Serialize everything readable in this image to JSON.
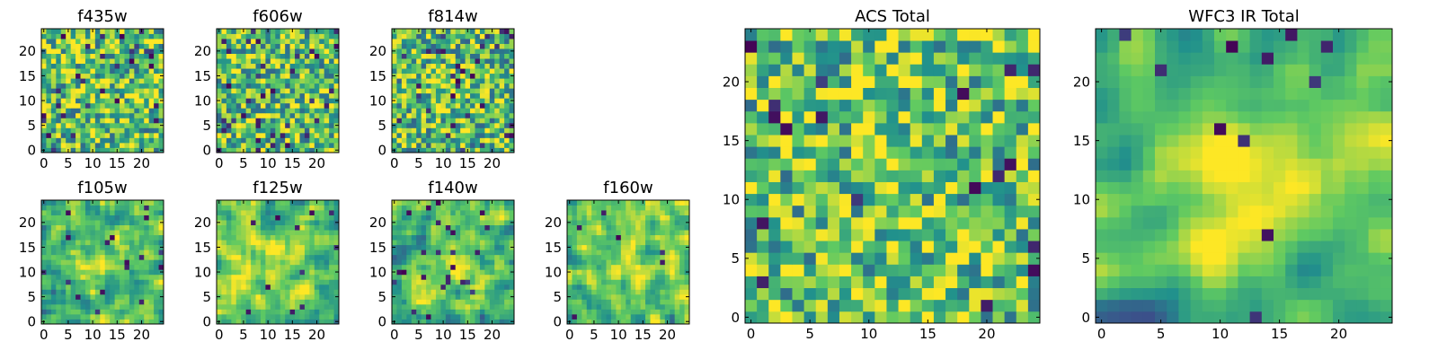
{
  "figure": {
    "colormap": "viridis",
    "colormap_stops": [
      "#440154",
      "#3b528b",
      "#21918c",
      "#5ec962",
      "#fde725"
    ],
    "axis_color": "#000000"
  },
  "chart_data": [
    {
      "type": "heatmap",
      "title": "f435w",
      "grid_size": 25,
      "xlim": [
        0,
        24
      ],
      "ylim": [
        0,
        24
      ],
      "xticks": [
        "0",
        "5",
        "10",
        "15",
        "20"
      ],
      "yticks": [
        "0",
        "5",
        "10",
        "15",
        "20"
      ],
      "grid": false,
      "legend": "none",
      "texture": "fine uniform noise, mostly green/yellow with scattered dark purple pixels"
    },
    {
      "type": "heatmap",
      "title": "f606w",
      "grid_size": 25,
      "xlim": [
        0,
        24
      ],
      "ylim": [
        0,
        24
      ],
      "xticks": [
        "0",
        "5",
        "10",
        "15",
        "20"
      ],
      "yticks": [
        "0",
        "5",
        "10",
        "15",
        "20"
      ],
      "grid": false,
      "legend": "none",
      "texture": "fine uniform noise, mostly green/yellow with scattered dark purple pixels"
    },
    {
      "type": "heatmap",
      "title": "f814w",
      "grid_size": 25,
      "xlim": [
        0,
        24
      ],
      "ylim": [
        0,
        24
      ],
      "xticks": [
        "0",
        "5",
        "10",
        "15",
        "20"
      ],
      "yticks": [
        "0",
        "5",
        "10",
        "15",
        "20"
      ],
      "grid": false,
      "legend": "none",
      "texture": "fine noise with faint bright center, scattered dark purple pixels"
    },
    {
      "type": "heatmap",
      "title": "f105w",
      "grid_size": 25,
      "xlim": [
        0,
        24
      ],
      "ylim": [
        0,
        24
      ],
      "xticks": [
        "0",
        "5",
        "10",
        "15",
        "20"
      ],
      "yticks": [
        "0",
        "5",
        "10",
        "15",
        "20"
      ],
      "grid": false,
      "legend": "none",
      "texture": "smoother noise with bright yellow source near center"
    },
    {
      "type": "heatmap",
      "title": "f125w",
      "grid_size": 25,
      "xlim": [
        0,
        24
      ],
      "ylim": [
        0,
        24
      ],
      "xticks": [
        "0",
        "5",
        "10",
        "15",
        "20"
      ],
      "yticks": [
        "0",
        "5",
        "10",
        "15",
        "20"
      ],
      "grid": false,
      "legend": "none",
      "texture": "smoother noise, bright yellow patches, few dark spots"
    },
    {
      "type": "heatmap",
      "title": "f140w",
      "grid_size": 25,
      "xlim": [
        0,
        24
      ],
      "ylim": [
        0,
        24
      ],
      "xticks": [
        "0",
        "5",
        "10",
        "15",
        "20"
      ],
      "yticks": [
        "0",
        "5",
        "10",
        "15",
        "20"
      ],
      "grid": false,
      "legend": "none",
      "texture": "smoother noise with bright center, blue/purple patches lower-left"
    },
    {
      "type": "heatmap",
      "title": "f160w",
      "grid_size": 25,
      "xlim": [
        0,
        24
      ],
      "ylim": [
        0,
        24
      ],
      "xticks": [
        "0",
        "5",
        "10",
        "15",
        "20"
      ],
      "yticks": [
        "0",
        "5",
        "10",
        "15",
        "20"
      ],
      "grid": false,
      "legend": "none",
      "texture": "smoother noise with bright center"
    },
    {
      "type": "heatmap",
      "title": "ACS Total",
      "grid_size": 25,
      "xlim": [
        0,
        24
      ],
      "ylim": [
        0,
        24
      ],
      "xticks": [
        "0",
        "5",
        "10",
        "15",
        "20"
      ],
      "yticks": [
        "0",
        "5",
        "10",
        "15",
        "20"
      ],
      "grid": false,
      "legend": "none",
      "texture": "pixelated noise, green/yellow, dark pixels scattered"
    },
    {
      "type": "heatmap",
      "title": "WFC3 IR Total",
      "grid_size": 25,
      "xlim": [
        0,
        24
      ],
      "ylim": [
        0,
        24
      ],
      "xticks": [
        "0",
        "5",
        "10",
        "15",
        "20"
      ],
      "yticks": [
        "0",
        "5",
        "10",
        "15",
        "20"
      ],
      "grid": false,
      "legend": "none",
      "texture": "smooth field with bright yellow source centered near (12,13), dark pixels at left edge and lower middle"
    }
  ]
}
